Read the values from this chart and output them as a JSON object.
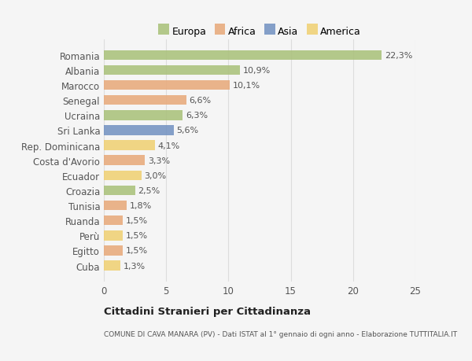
{
  "categories": [
    "Romania",
    "Albania",
    "Marocco",
    "Senegal",
    "Ucraina",
    "Sri Lanka",
    "Rep. Dominicana",
    "Costa d'Avorio",
    "Ecuador",
    "Croazia",
    "Tunisia",
    "Ruanda",
    "Perù",
    "Egitto",
    "Cuba"
  ],
  "values": [
    22.3,
    10.9,
    10.1,
    6.6,
    6.3,
    5.6,
    4.1,
    3.3,
    3.0,
    2.5,
    1.8,
    1.5,
    1.5,
    1.5,
    1.3
  ],
  "labels": [
    "22,3%",
    "10,9%",
    "10,1%",
    "6,6%",
    "6,3%",
    "5,6%",
    "4,1%",
    "3,3%",
    "3,0%",
    "2,5%",
    "1,8%",
    "1,5%",
    "1,5%",
    "1,5%",
    "1,3%"
  ],
  "colors": [
    "#a8c078",
    "#a8c078",
    "#e8a878",
    "#e8a878",
    "#a8c078",
    "#7090c0",
    "#f0d070",
    "#e8a878",
    "#f0d070",
    "#a8c078",
    "#e8a878",
    "#e8a878",
    "#f0d070",
    "#e8a878",
    "#f0d070"
  ],
  "legend": {
    "Europa": "#a8c078",
    "Africa": "#e8a878",
    "Asia": "#7090c0",
    "America": "#f0d070"
  },
  "xlim": [
    0,
    25
  ],
  "xticks": [
    0,
    5,
    10,
    15,
    20,
    25
  ],
  "title": "Cittadini Stranieri per Cittadinanza",
  "subtitle": "COMUNE DI CAVA MANARA (PV) - Dati ISTAT al 1° gennaio di ogni anno - Elaborazione TUTTITALIA.IT",
  "background_color": "#f5f5f5",
  "bar_height": 0.65,
  "grid_color": "#dddddd"
}
